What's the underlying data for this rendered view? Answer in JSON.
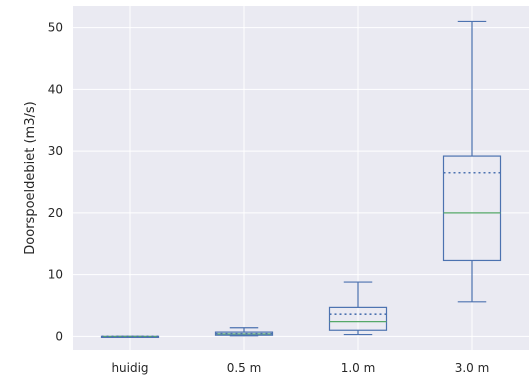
{
  "chart_data": {
    "type": "box",
    "ylabel": "Doorspoeldebiet (m3/s)",
    "xlabel": "",
    "title": "",
    "ylim": [
      -2.2,
      53.5
    ],
    "yticks": [
      0,
      10,
      20,
      30,
      40,
      50
    ],
    "grid": true,
    "categories": [
      "huidig",
      "0.5 m",
      "1.0 m",
      "3.0 m"
    ],
    "boxes": [
      {
        "category": "huidig",
        "whislo": 0.0,
        "q1": 0.0,
        "med": 0.0,
        "q3": 0.0,
        "whishi": 0.0,
        "mean": 0.0
      },
      {
        "category": "0.5 m",
        "whislo": 0.1,
        "q1": 0.2,
        "med": 0.4,
        "q3": 0.7,
        "whishi": 1.4,
        "mean": 0.45
      },
      {
        "category": "1.0 m",
        "whislo": 0.3,
        "q1": 1.0,
        "med": 2.4,
        "q3": 4.7,
        "whishi": 8.8,
        "mean": 3.6
      },
      {
        "category": "3.0 m",
        "whislo": 5.6,
        "q1": 12.3,
        "med": 20.0,
        "q3": 29.2,
        "whishi": 51.0,
        "mean": 26.5
      }
    ],
    "colors": {
      "background": "#eaeaf2",
      "grid": "#ffffff",
      "box": "#4c72b0",
      "median": "#55a868",
      "mean": "#4c72b0",
      "text": "#262626"
    }
  }
}
